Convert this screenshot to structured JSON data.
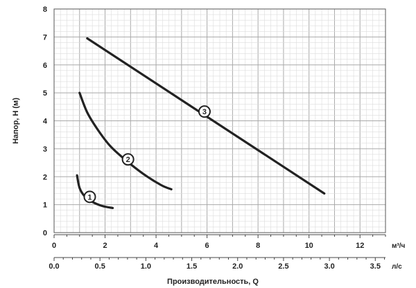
{
  "chart_data": {
    "type": "line",
    "xlabel": "Производительность, Q",
    "ylabel": "Напор, H (м)",
    "x_unit_primary": "м³/ч",
    "x_unit_secondary": "л/с",
    "xlim": [
      0,
      13
    ],
    "ylim": [
      0,
      8
    ],
    "x_ticks_primary": [
      "0",
      "2",
      "4",
      "6",
      "8",
      "10",
      "12"
    ],
    "x_ticks_primary_values": [
      0,
      2,
      4,
      6,
      8,
      10,
      12
    ],
    "x_ticks_secondary": [
      "0.0",
      "0.5",
      "1.0",
      "1.5",
      "2.0",
      "2.5",
      "3.0",
      "3.5"
    ],
    "x_ticks_secondary_values": [
      0.0,
      0.5,
      1.0,
      1.5,
      2.0,
      2.5,
      3.0,
      3.5
    ],
    "y_ticks": [
      "0",
      "1",
      "2",
      "3",
      "4",
      "5",
      "6",
      "7",
      "8"
    ],
    "y_ticks_values": [
      0,
      1,
      2,
      3,
      4,
      5,
      6,
      7,
      8
    ],
    "grid": true,
    "series": [
      {
        "name": "1",
        "x": [
          0.9,
          1.0,
          1.2,
          1.5,
          1.9,
          2.3
        ],
        "y": [
          2.05,
          1.6,
          1.3,
          1.1,
          0.95,
          0.88
        ],
        "label_at": [
          1.4,
          1.28
        ]
      },
      {
        "name": "2",
        "x": [
          1.0,
          1.3,
          1.7,
          2.2,
          2.8,
          3.5,
          4.2,
          4.6
        ],
        "y": [
          5.0,
          4.3,
          3.7,
          3.1,
          2.6,
          2.1,
          1.7,
          1.55
        ],
        "label_at": [
          2.9,
          2.62
        ]
      },
      {
        "name": "3",
        "x": [
          1.3,
          10.6
        ],
        "y": [
          6.95,
          1.4
        ],
        "label_at": [
          5.9,
          4.33
        ]
      }
    ]
  }
}
